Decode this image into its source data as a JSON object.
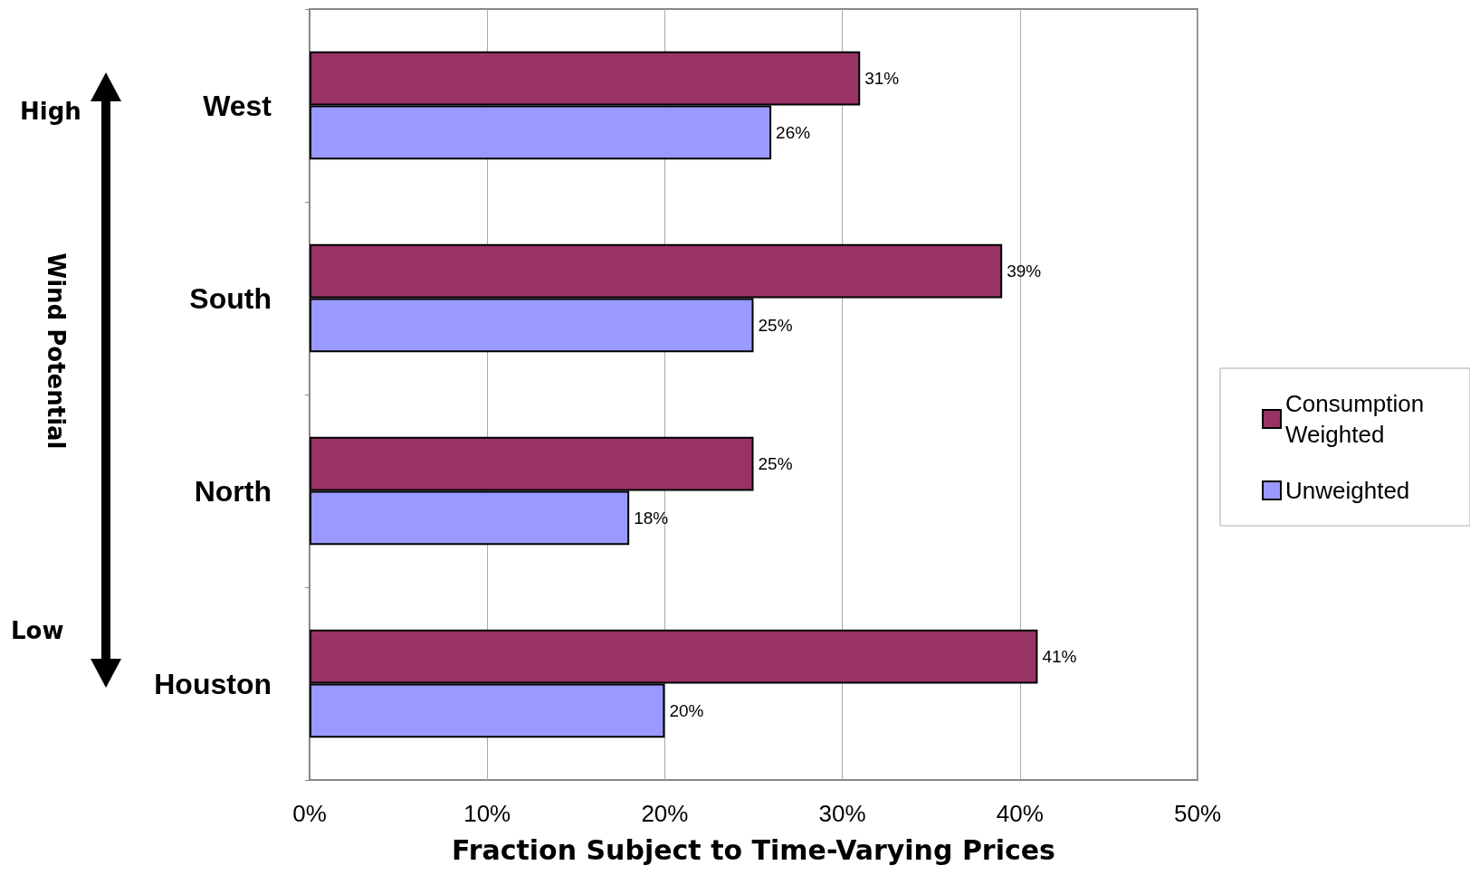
{
  "chart_data": {
    "type": "bar",
    "orientation": "horizontal",
    "categories": [
      "West",
      "South",
      "North",
      "Houston"
    ],
    "series": [
      {
        "name": "Consumption Weighted",
        "color": "#993366",
        "values": [
          31,
          39,
          25,
          41
        ],
        "value_labels": [
          "31%",
          "39%",
          "25%",
          "41%"
        ]
      },
      {
        "name": "Unweighted",
        "color": "#9999ff",
        "values": [
          26,
          25,
          18,
          20
        ],
        "value_labels": [
          "26%",
          "25%",
          "18%",
          "20%"
        ]
      }
    ],
    "xlim": [
      0,
      50
    ],
    "xticks": [
      {
        "value": 0,
        "label": "0%"
      },
      {
        "value": 10,
        "label": "10%"
      },
      {
        "value": 20,
        "label": "20%"
      },
      {
        "value": 30,
        "label": "30%"
      },
      {
        "value": 40,
        "label": "40%"
      },
      {
        "value": 50,
        "label": "50%"
      }
    ],
    "xlabel": "Fraction Subject to Time-Varying Prices",
    "ylabel": "Wind Potential",
    "annotations": [
      "High",
      "Low"
    ],
    "grid": "x",
    "legend": "right"
  }
}
